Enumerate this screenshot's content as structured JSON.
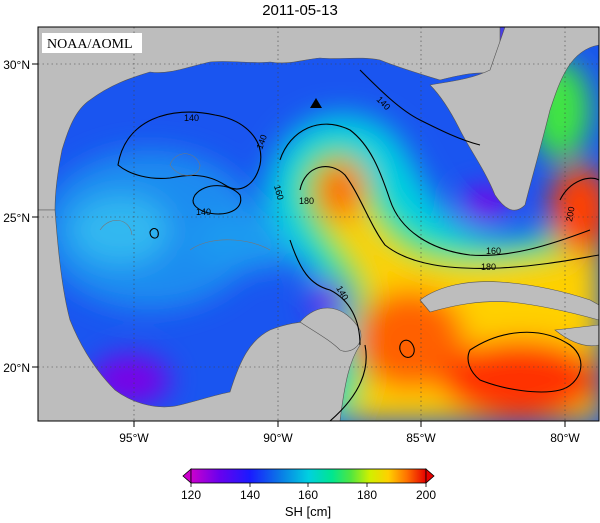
{
  "title": "2011-05-13",
  "credit": "NOAA/AOML",
  "map": {
    "lon_labels": [
      "95°W",
      "90°W",
      "85°W",
      "80°W"
    ],
    "lat_labels": [
      "30°N",
      "25°N",
      "20°N"
    ],
    "lon_range": [
      -98,
      -78
    ],
    "lat_range": [
      18,
      31
    ],
    "contour_labels": [
      "140",
      "140",
      "140",
      "160",
      "180",
      "160",
      "180",
      "200",
      "140",
      "140"
    ],
    "marker": "triangle-marker"
  },
  "colorbar": {
    "label": "SH [cm]",
    "ticks": [
      "120",
      "140",
      "160",
      "180",
      "200"
    ],
    "range": [
      120,
      200
    ],
    "colors": [
      "#cc00cc",
      "#7a00e6",
      "#1a1aff",
      "#0a6ae6",
      "#00c8e6",
      "#00e6a0",
      "#40e640",
      "#c8f000",
      "#ffd700",
      "#ff8c00",
      "#ff2a00",
      "#c80000"
    ]
  }
}
